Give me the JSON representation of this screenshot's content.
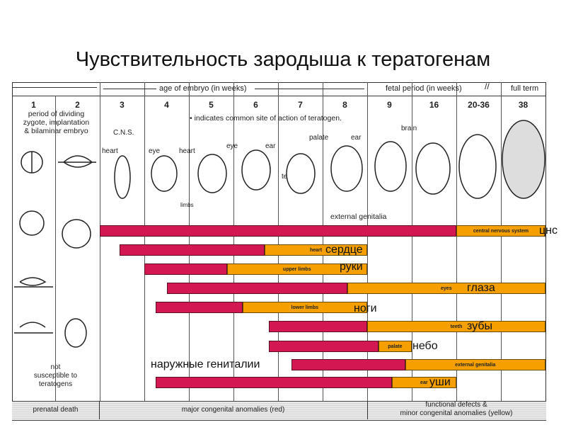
{
  "title": "Чувствительность зародыша к тератогенам",
  "header": {
    "age_label": "age of embryo (in weeks)",
    "fetal_label": "fetal period (in weeks)",
    "full_term": "full term",
    "columns": [
      "1",
      "2",
      "3",
      "4",
      "5",
      "6",
      "7",
      "8",
      "9",
      "16",
      "20-36",
      "38"
    ],
    "period_text": [
      "period of dividing",
      "zygote, implantation",
      "& bilaminar embryo"
    ],
    "site_note": "• indicates common site of action of teratogen."
  },
  "sketch_labels": {
    "cns": "C.N.S.",
    "heart3": "heart",
    "eye4": "eye",
    "heart45": "heart",
    "eye5": "eye",
    "ear6": "ear",
    "limbs": "limbs",
    "teeth": "teeth",
    "palate": "palate",
    "ear8": "ear",
    "brain": "brain",
    "external_genitalia": "external genitalia"
  },
  "not_susceptible": [
    "not",
    "susceptible to",
    "teratogens"
  ],
  "footer": {
    "prenatal_death": "prenatal death",
    "major": "major congenital anomalies (red)",
    "minor_1": "functional defects &",
    "minor_2": "minor congenital anomalies (yellow)"
  },
  "colors": {
    "major": "#d31753",
    "minor": "#f5a000"
  },
  "chart_data": {
    "type": "bar",
    "units": "column index from week 3 (0) to full term (10)",
    "bars": [
      {
        "label": "central nervous system",
        "ru": "цнс",
        "red": [
          0,
          8
        ],
        "yellow_end": 10
      },
      {
        "label": "heart",
        "ru": "сердце",
        "red": [
          0.45,
          3.7
        ],
        "yellow_end": 6
      },
      {
        "label": "upper limbs",
        "ru": "руки",
        "red": [
          1.0,
          2.85
        ],
        "yellow_end": 6
      },
      {
        "label": "eyes",
        "ru": "глаза",
        "red": [
          1.5,
          5.55
        ],
        "yellow_end": 10
      },
      {
        "label": "lower limbs",
        "ru": "ноги",
        "red": [
          1.25,
          3.2
        ],
        "yellow_end": 6
      },
      {
        "label": "teeth",
        "ru": "зубы",
        "red": [
          3.8,
          6
        ],
        "yellow_end": 10
      },
      {
        "label": "palate",
        "ru": "небо",
        "red": [
          3.8,
          6.25
        ],
        "yellow_end": 7
      },
      {
        "label": "external genitalia",
        "ru": "наружные гениталии",
        "red": [
          4.3,
          6.85
        ],
        "yellow_end": 10
      },
      {
        "label": "ear",
        "ru": "уши",
        "red": [
          1.25,
          6.55
        ],
        "yellow_end": 8
      }
    ]
  }
}
